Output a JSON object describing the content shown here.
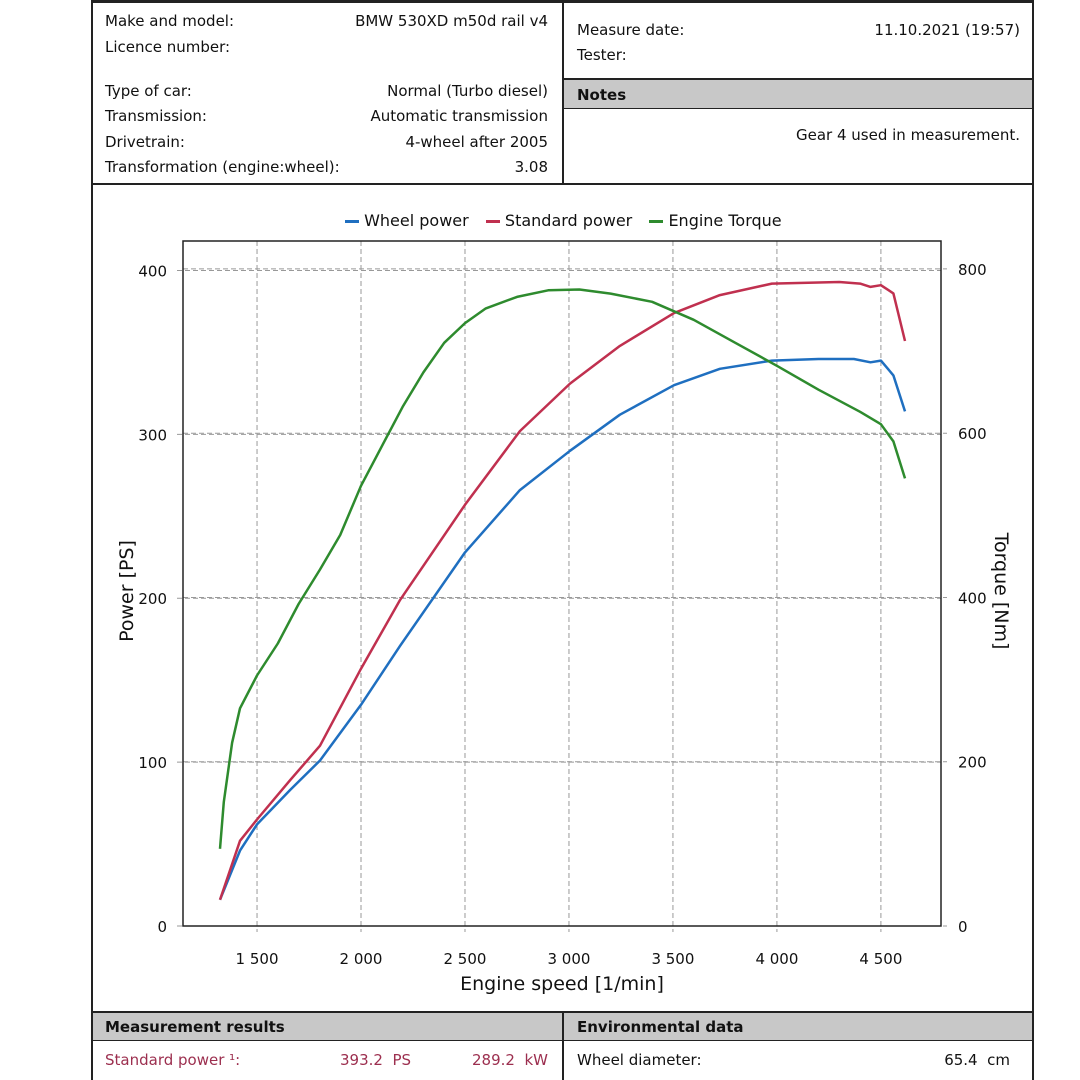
{
  "vehicle": {
    "make_label": "Make and model:",
    "make_value": "BMW 530XD m50d rail v4",
    "licence_label": "Licence number:",
    "licence_value": "",
    "type_label": "Type of car:",
    "type_value": "Normal (Turbo diesel)",
    "transmission_label": "Transmission:",
    "transmission_value": "Automatic transmission",
    "drivetrain_label": "Drivetrain:",
    "drivetrain_value": "4-wheel after 2005",
    "transformation_label": "Transformation (engine:wheel):",
    "transformation_value": "3.08"
  },
  "measure": {
    "date_label": "Measure date:",
    "date_value": "11.10.2021 (19:57)",
    "tester_label": "Tester:",
    "tester_value": ""
  },
  "notes": {
    "title": "Notes",
    "text": "Gear 4 used in measurement."
  },
  "results": {
    "title": "Measurement results",
    "rows": [
      {
        "label": "Standard power ¹:",
        "ps": "393.2  PS",
        "kw": "289.2  kW"
      }
    ]
  },
  "environment": {
    "title": "Environmental data",
    "rows": [
      {
        "label": "Wheel diameter:",
        "value": "65.4  cm"
      }
    ]
  },
  "chart_data": {
    "type": "line",
    "xlabel": "Engine speed [1/min]",
    "ylabel": "Power [PS]",
    "y2label": "Torque [Nm]",
    "xlim": [
      1144,
      4789
    ],
    "ylim": [
      0,
      418
    ],
    "y2lim": [
      0,
      834
    ],
    "x_ticks": [
      1500,
      2000,
      2500,
      3000,
      3500,
      4000,
      4500
    ],
    "x_tick_labels": [
      "1 500",
      "2 000",
      "2 500",
      "3 000",
      "3 500",
      "4 000",
      "4 500"
    ],
    "y_ticks": [
      0,
      100,
      200,
      300,
      400
    ],
    "y_tick_labels": [
      "0",
      "100",
      "200",
      "300",
      "400"
    ],
    "y2_ticks": [
      0,
      200,
      400,
      600,
      800
    ],
    "y2_tick_labels": [
      "0",
      "200",
      "400",
      "600",
      "800"
    ],
    "grid": true,
    "legend_position": "top",
    "series": [
      {
        "name": "Wheel power",
        "axis": "left",
        "color": "#1f6fc0",
        "x": [
          1322,
          1418,
          1500,
          1659,
          1803,
          2000,
          2188,
          2500,
          2764,
          3005,
          3245,
          3505,
          3726,
          3976,
          4200,
          4370,
          4450,
          4500,
          4560,
          4616
        ],
        "y": [
          16,
          46,
          62,
          83,
          101,
          135,
          171,
          228,
          266,
          290,
          312,
          330,
          340,
          345,
          346,
          346,
          344,
          345,
          336,
          314
        ]
      },
      {
        "name": "Standard power",
        "axis": "left",
        "color": "#c0304f",
        "x": [
          1322,
          1418,
          1500,
          1659,
          1803,
          2000,
          2188,
          2500,
          2764,
          3005,
          3245,
          3505,
          3726,
          3976,
          4300,
          4400,
          4450,
          4500,
          4560,
          4616
        ],
        "y": [
          16,
          52,
          65,
          89,
          110,
          157,
          199,
          257,
          302,
          331,
          354,
          374,
          385,
          392,
          393,
          392,
          390,
          391,
          386,
          357
        ]
      },
      {
        "name": "Engine Torque",
        "axis": "right",
        "color": "#2e8b2e",
        "x": [
          1322,
          1340,
          1380,
          1418,
          1500,
          1600,
          1700,
          1803,
          1900,
          2000,
          2100,
          2200,
          2300,
          2400,
          2500,
          2600,
          2750,
          2900,
          3050,
          3200,
          3400,
          3600,
          3800,
          4000,
          4200,
          4400,
          4500,
          4560,
          4616
        ],
        "y": [
          94,
          151,
          223,
          265,
          305,
          344,
          392,
          434,
          476,
          536,
          584,
          632,
          674,
          710,
          734,
          752,
          766,
          774,
          775,
          770,
          760,
          738,
          710,
          682,
          653,
          626,
          611,
          590,
          545
        ]
      }
    ]
  }
}
